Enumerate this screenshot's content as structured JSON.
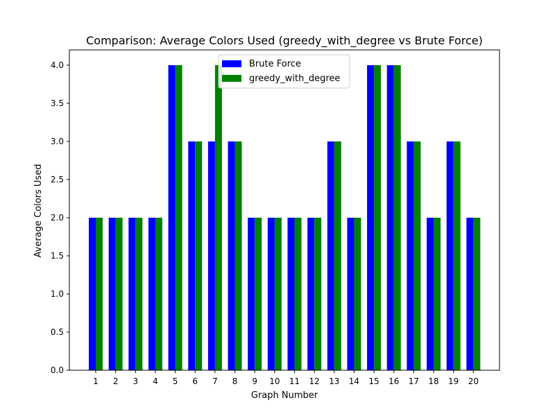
{
  "chart_data": {
    "type": "bar",
    "title": "Comparison: Average Colors Used (greedy_with_degree vs Brute Force)",
    "xlabel": "Graph Number",
    "ylabel": "Average Colors Used",
    "categories": [
      "1",
      "2",
      "3",
      "4",
      "5",
      "6",
      "7",
      "8",
      "9",
      "10",
      "11",
      "12",
      "13",
      "14",
      "15",
      "16",
      "17",
      "18",
      "19",
      "20"
    ],
    "series": [
      {
        "name": "Brute Force",
        "color": "#0000ff",
        "values": [
          2,
          2,
          2,
          2,
          4,
          3,
          3,
          3,
          2,
          2,
          2,
          2,
          3,
          2,
          4,
          4,
          3,
          2,
          3,
          2
        ]
      },
      {
        "name": "greedy_with_degree",
        "color": "#008000",
        "values": [
          2,
          2,
          2,
          2,
          4,
          3,
          4,
          3,
          2,
          2,
          2,
          2,
          3,
          2,
          4,
          4,
          3,
          2,
          3,
          2
        ]
      }
    ],
    "ylim": [
      0,
      4.2
    ],
    "yticks": [
      "0.0",
      "0.5",
      "1.0",
      "1.5",
      "2.0",
      "2.5",
      "3.0",
      "3.5",
      "4.0"
    ],
    "grid": false,
    "legend_position": "top-center"
  }
}
